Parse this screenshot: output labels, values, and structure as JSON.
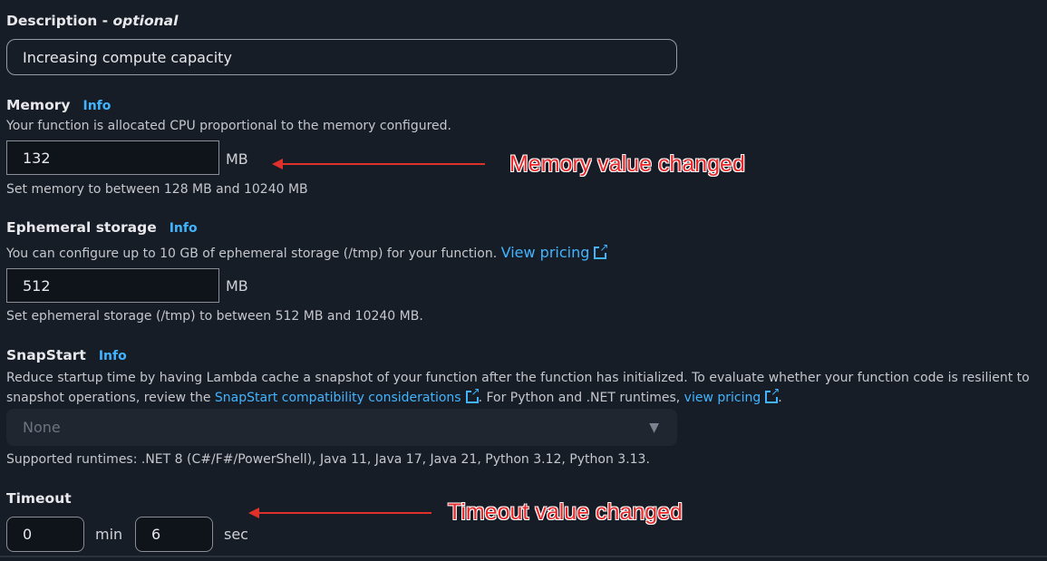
{
  "description": {
    "label": "Description",
    "optional": "optional",
    "value": "Increasing compute capacity"
  },
  "memory": {
    "label": "Memory",
    "info": "Info",
    "help": "Your function is allocated CPU proportional to the memory configured.",
    "value": "132",
    "unit": "MB",
    "constraint": "Set memory to between 128 MB and 10240 MB"
  },
  "ephemeral": {
    "label": "Ephemeral storage",
    "info": "Info",
    "help": "You can configure up to 10 GB of ephemeral storage (/tmp) for your function.",
    "link": "View pricing",
    "value": "512",
    "unit": "MB",
    "constraint": "Set ephemeral storage (/tmp) to between 512 MB and 10240 MB."
  },
  "snapstart": {
    "label": "SnapStart",
    "info": "Info",
    "help1": "Reduce startup time by having Lambda cache a snapshot of your function after the function has initialized. To evaluate whether your function code is resilient to snapshot operations, review the",
    "link1": "SnapStart compatibility considerations",
    "help2": ". For Python and .NET runtimes,",
    "link2": "view pricing",
    "help3": ".",
    "select_value": "None",
    "supported": "Supported runtimes: .NET 8 (C#/F#/PowerShell), Java 11, Java 17, Java 21, Python 3.12, Python 3.13."
  },
  "timeout": {
    "label": "Timeout",
    "min_value": "0",
    "min_unit": "min",
    "sec_value": "6",
    "sec_unit": "sec"
  },
  "annotations": {
    "memory": "Memory value changed",
    "timeout": "Timeout value changed"
  }
}
